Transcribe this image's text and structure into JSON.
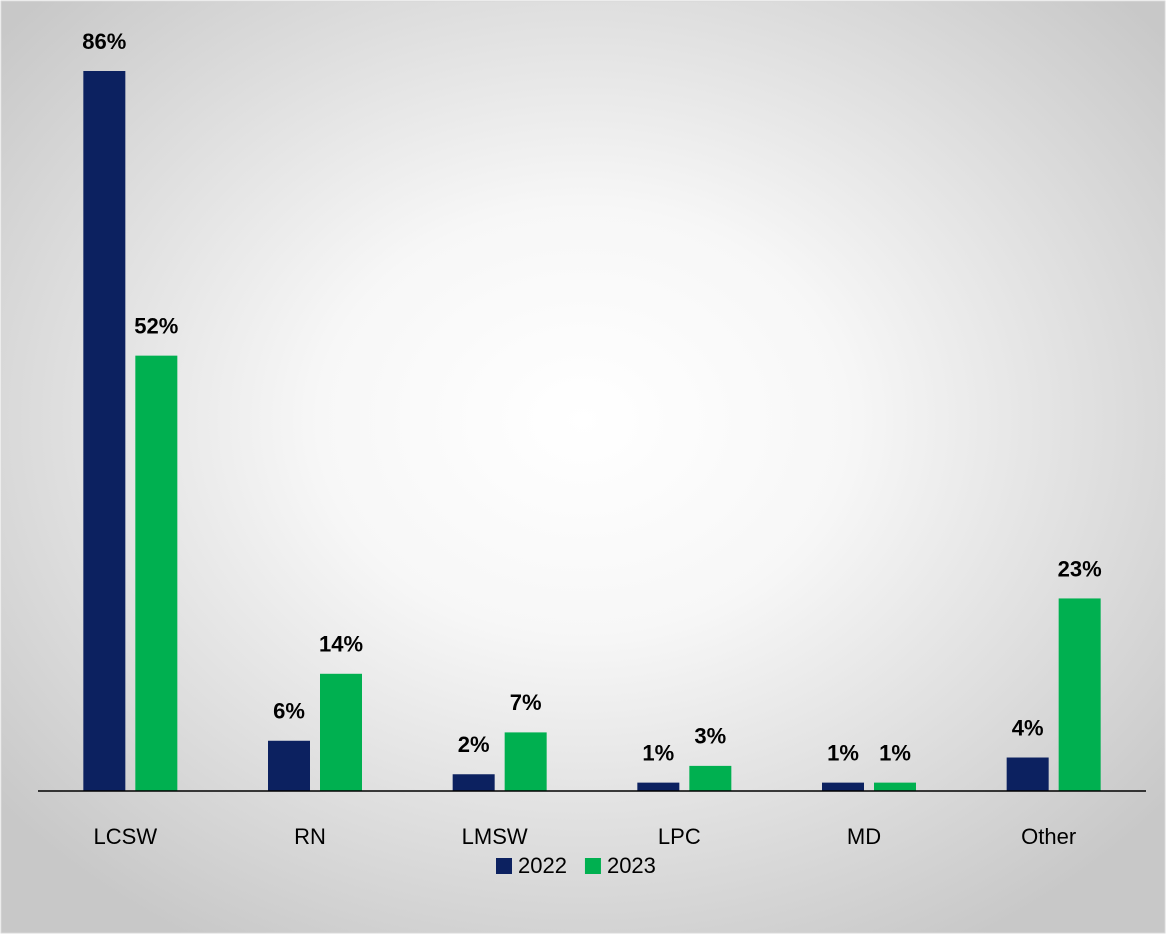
{
  "chart_data": {
    "type": "bar",
    "categories": [
      "LCSW",
      "RN",
      "LMSW",
      "LPC",
      "MD",
      "Other"
    ],
    "series": [
      {
        "name": "2022",
        "color": "#0c2160",
        "values": [
          86,
          6,
          2,
          1,
          1,
          4
        ],
        "value_labels": [
          "86%",
          "6%",
          "2%",
          "1%",
          "1%",
          "4%"
        ]
      },
      {
        "name": "2023",
        "color": "#00b050",
        "values": [
          52,
          14,
          7,
          3,
          1,
          23
        ],
        "value_labels": [
          "52%",
          "14%",
          "7%",
          "3%",
          "1%",
          "23%"
        ]
      }
    ],
    "legend": "bottom"
  }
}
